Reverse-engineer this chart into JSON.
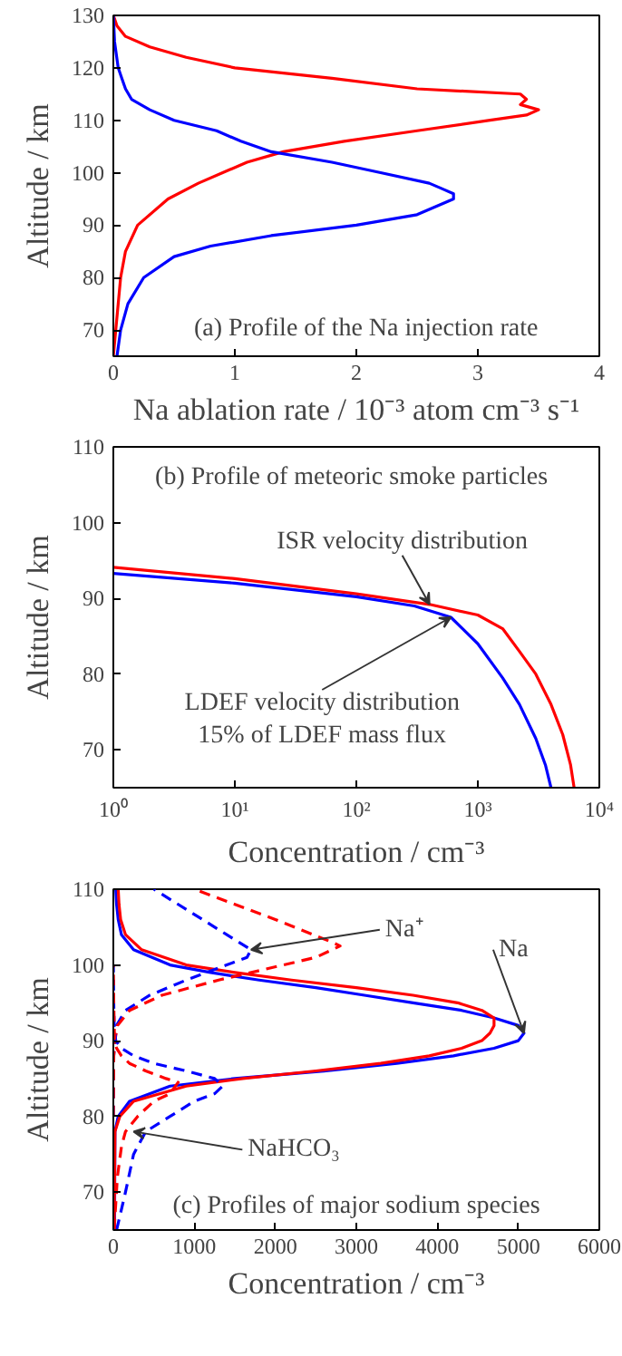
{
  "chart_data": [
    {
      "type": "line",
      "xlabel": "Na ablation rate / 10⁻³ atom cm⁻³ s⁻¹",
      "ylabel": "Altitude / km",
      "xlim": [
        0,
        4
      ],
      "ylim": [
        65,
        130
      ],
      "xticks": [
        0,
        1,
        2,
        3,
        4
      ],
      "yticks": [
        70,
        80,
        90,
        100,
        110,
        120,
        130
      ],
      "grid": false,
      "series": [
        {
          "color": "#ff0000",
          "x": [
            0,
            0.02,
            0.06,
            0.1,
            0.2,
            0.45,
            0.7,
            0.9,
            1.1,
            1.4,
            1.9,
            2.5,
            3.1,
            3.4,
            3.5,
            3.35,
            3.4,
            3.35,
            2.5,
            1.8,
            1.0,
            0.6,
            0.3,
            0.1,
            0.03,
            0
          ],
          "values": [
            65,
            70,
            80,
            85,
            90,
            95,
            98,
            100,
            102,
            104,
            106,
            108,
            110,
            111,
            112,
            113,
            114,
            115,
            116,
            118,
            120,
            122,
            124,
            126,
            128,
            130
          ]
        },
        {
          "color": "#0000ff",
          "x": [
            0.03,
            0.06,
            0.12,
            0.25,
            0.5,
            0.8,
            1.3,
            2.0,
            2.5,
            2.7,
            2.8,
            2.8,
            2.7,
            2.6,
            2.2,
            1.8,
            1.3,
            1.05,
            0.85,
            0.5,
            0.3,
            0.15,
            0.1,
            0.07,
            0.04,
            0.01,
            0
          ],
          "values": [
            65,
            70,
            75,
            80,
            84,
            86,
            88,
            90,
            92,
            94,
            95,
            96,
            97,
            98,
            100,
            102,
            104,
            106,
            108,
            110,
            112,
            114,
            116,
            118,
            120,
            125,
            130
          ]
        }
      ],
      "annotations": [
        "(a) Profile of the Na injection rate"
      ]
    },
    {
      "type": "line",
      "xlabel": "Concentration / cm⁻³",
      "ylabel": "Altitude / km",
      "log": "x",
      "xlim": [
        1,
        10000
      ],
      "ylim": [
        65,
        110
      ],
      "xticks": [
        {
          "value": 1,
          "label": "10⁰"
        },
        {
          "value": 10,
          "label": "10¹"
        },
        {
          "value": 100,
          "label": "10²"
        },
        {
          "value": 1000,
          "label": "10³"
        },
        {
          "value": 10000,
          "label": "10⁴"
        }
      ],
      "yticks": [
        70,
        80,
        90,
        100,
        110
      ],
      "grid": false,
      "series": [
        {
          "color": "#ff0000",
          "x": [
            1,
            10,
            100,
            400,
            1000,
            1600,
            2200,
            3000,
            4000,
            5000,
            5800,
            6200
          ],
          "values": [
            94.1,
            92.6,
            90.6,
            89.2,
            87.8,
            86,
            83,
            80,
            76,
            72,
            68,
            65
          ]
        },
        {
          "color": "#0000ff",
          "x": [
            1,
            10,
            100,
            300,
            600,
            1000,
            1600,
            2200,
            3000,
            3600,
            4000
          ],
          "values": [
            93.3,
            92,
            90.2,
            89,
            87.5,
            84,
            79.5,
            76,
            71.5,
            68,
            65
          ]
        }
      ],
      "annotations": [
        "(b) Profile of meteoric smoke particles",
        {
          "text": "ISR velocity distribution",
          "x": 400,
          "y": 89.2
        },
        {
          "text": "LDEF velocity distribution\n15% of LDEF mass flux",
          "x": 600,
          "y": 87.5
        }
      ]
    },
    {
      "type": "line",
      "xlabel": "Concentration / cm⁻³",
      "ylabel": "Altitude / km",
      "xlim": [
        0,
        6000
      ],
      "ylim": [
        65,
        110
      ],
      "xticks": [
        0,
        1000,
        2000,
        3000,
        4000,
        5000,
        6000
      ],
      "yticks": [
        70,
        80,
        90,
        100,
        110
      ],
      "grid": false,
      "series": [
        {
          "color": "#0000ff",
          "line_style": "solid",
          "x": [
            15,
            20,
            60,
            200,
            700,
            1500,
            2600,
            3500,
            4200,
            4700,
            5000,
            5070,
            5000,
            4700,
            4300,
            3700,
            3100,
            2500,
            1800,
            1200,
            700,
            250,
            100,
            60,
            40,
            30
          ],
          "values": [
            65,
            78,
            80,
            82,
            84,
            85,
            86,
            87,
            88,
            89,
            90,
            91,
            92,
            93,
            94,
            95,
            96,
            97,
            98,
            99,
            100,
            102,
            104,
            106,
            108,
            110
          ]
        },
        {
          "color": "#ff0000",
          "line_style": "solid",
          "x": [
            10,
            20,
            80,
            250,
            900,
            1600,
            2500,
            3300,
            3900,
            4300,
            4550,
            4650,
            4700,
            4700,
            4550,
            4250,
            3700,
            3000,
            2200,
            1500,
            900,
            350,
            150,
            90,
            70,
            60
          ],
          "values": [
            65,
            78,
            80,
            82,
            84,
            85,
            86,
            87,
            88,
            89,
            90,
            91,
            92,
            93,
            94,
            95,
            96,
            97,
            98,
            99,
            100,
            102,
            104,
            106,
            108,
            110
          ]
        },
        {
          "color": "#0000ff",
          "line_style": "dashed",
          "x": [
            0,
            5,
            20,
            40,
            150,
            450,
            900,
            1400,
            1650,
            1700,
            1400,
            500
          ],
          "values": [
            80,
            88,
            90,
            92,
            94,
            96,
            98,
            100,
            101,
            102,
            104,
            110
          ]
        },
        {
          "color": "#ff0000",
          "line_style": "dashed",
          "x": [
            0,
            5,
            20,
            50,
            200,
            600,
            1300,
            2100,
            2500,
            2800,
            2700,
            2000,
            1000
          ],
          "values": [
            80,
            88,
            90,
            92,
            94,
            96,
            98,
            100,
            101,
            102.5,
            103,
            106,
            110
          ]
        },
        {
          "color": "#0000ff",
          "line_style": "dashed",
          "x": [
            40,
            150,
            250,
            400,
            700,
            1000,
            1250,
            1350,
            1250,
            900,
            500,
            250,
            100,
            30,
            10,
            5,
            0
          ],
          "values": [
            65,
            70,
            75,
            78,
            80,
            82,
            83,
            84,
            85,
            86,
            87,
            88,
            89,
            90,
            92,
            95,
            100
          ]
        },
        {
          "color": "#ff0000",
          "line_style": "dashed",
          "x": [
            10,
            50,
            100,
            150,
            300,
            500,
            700,
            800,
            650,
            400,
            200,
            100,
            40,
            15,
            5,
            0
          ],
          "values": [
            65,
            72,
            76,
            78,
            80,
            82,
            83,
            84.5,
            85,
            86,
            87,
            88,
            89,
            90,
            95,
            100
          ]
        }
      ],
      "annotations": [
        "(c) Profiles of major sodium species",
        {
          "text": "Na⁺",
          "x": 1700,
          "y": 102
        },
        {
          "text": "Na",
          "x": 5070,
          "y": 91
        },
        {
          "text": "NaHCO₃",
          "x": 250,
          "y": 78
        }
      ]
    }
  ]
}
